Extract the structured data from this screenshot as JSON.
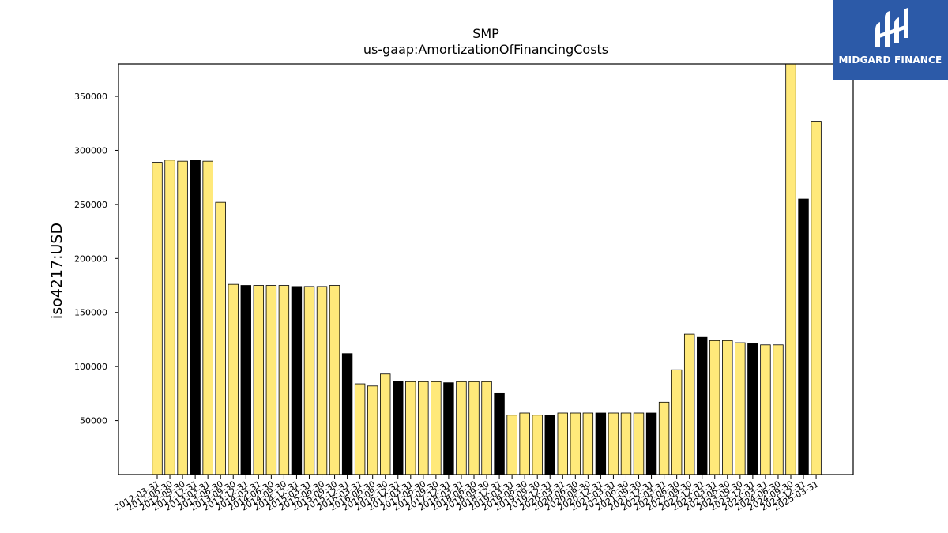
{
  "chart_data": {
    "type": "bar",
    "title": "SMP",
    "subtitle": "us-gaap:AmortizationOfFinancingCosts",
    "ylabel": "iso4217:USD",
    "xlabel": "",
    "ylim": [
      0,
      380000
    ],
    "yticks": [
      50000,
      100000,
      150000,
      200000,
      250000,
      300000,
      350000
    ],
    "grid": false,
    "colors": {
      "default": "#ffe97a",
      "highlight": "#000000",
      "edge": "#000000"
    },
    "categories": [
      "2012-03-31",
      "2012-06-30",
      "2012-09-30",
      "2012-12-31",
      "2013-03-31",
      "2013-06-30",
      "2013-09-30",
      "2013-12-31",
      "2014-03-31",
      "2014-06-30",
      "2014-09-30",
      "2014-12-31",
      "2015-03-31",
      "2015-06-30",
      "2015-09-30",
      "2015-12-31",
      "2016-03-31",
      "2016-06-30",
      "2016-09-30",
      "2016-12-31",
      "2017-03-31",
      "2017-06-30",
      "2017-09-30",
      "2017-12-31",
      "2018-03-31",
      "2018-06-30",
      "2018-09-30",
      "2018-12-31",
      "2019-03-31",
      "2019-06-30",
      "2019-09-30",
      "2019-12-31",
      "2020-03-31",
      "2020-06-30",
      "2020-09-30",
      "2020-12-31",
      "2021-03-31",
      "2021-06-30",
      "2021-09-30",
      "2021-12-31",
      "2022-03-31",
      "2022-06-30",
      "2022-09-30",
      "2022-12-31",
      "2023-03-31",
      "2023-06-30",
      "2023-09-30",
      "2023-12-31",
      "2024-03-31",
      "2024-06-30",
      "2024-09-30",
      "2024-12-31",
      "2025-03-31"
    ],
    "values": [
      289000,
      291000,
      290000,
      291000,
      290000,
      252000,
      176000,
      175000,
      175000,
      175000,
      175000,
      174000,
      174000,
      174000,
      175000,
      112000,
      84000,
      82000,
      93000,
      86000,
      86000,
      86000,
      86000,
      85000,
      86000,
      86000,
      86000,
      75000,
      55000,
      57000,
      55000,
      55000,
      57000,
      57000,
      57000,
      57000,
      57000,
      57000,
      57000,
      57000,
      67000,
      97000,
      130000,
      127000,
      124000,
      124000,
      122000,
      121000,
      120000,
      120000,
      380000,
      255000,
      327000
    ],
    "highlight": [
      false,
      false,
      false,
      true,
      false,
      false,
      false,
      true,
      false,
      false,
      false,
      true,
      false,
      false,
      false,
      true,
      false,
      false,
      false,
      true,
      false,
      false,
      false,
      true,
      false,
      false,
      false,
      true,
      false,
      false,
      false,
      true,
      false,
      false,
      false,
      true,
      false,
      false,
      false,
      true,
      false,
      false,
      false,
      true,
      false,
      false,
      false,
      true,
      false,
      false,
      false,
      true,
      false
    ]
  },
  "logo": {
    "text": "MIDGARD FINANCE",
    "icon": "midgard-logo-icon"
  }
}
